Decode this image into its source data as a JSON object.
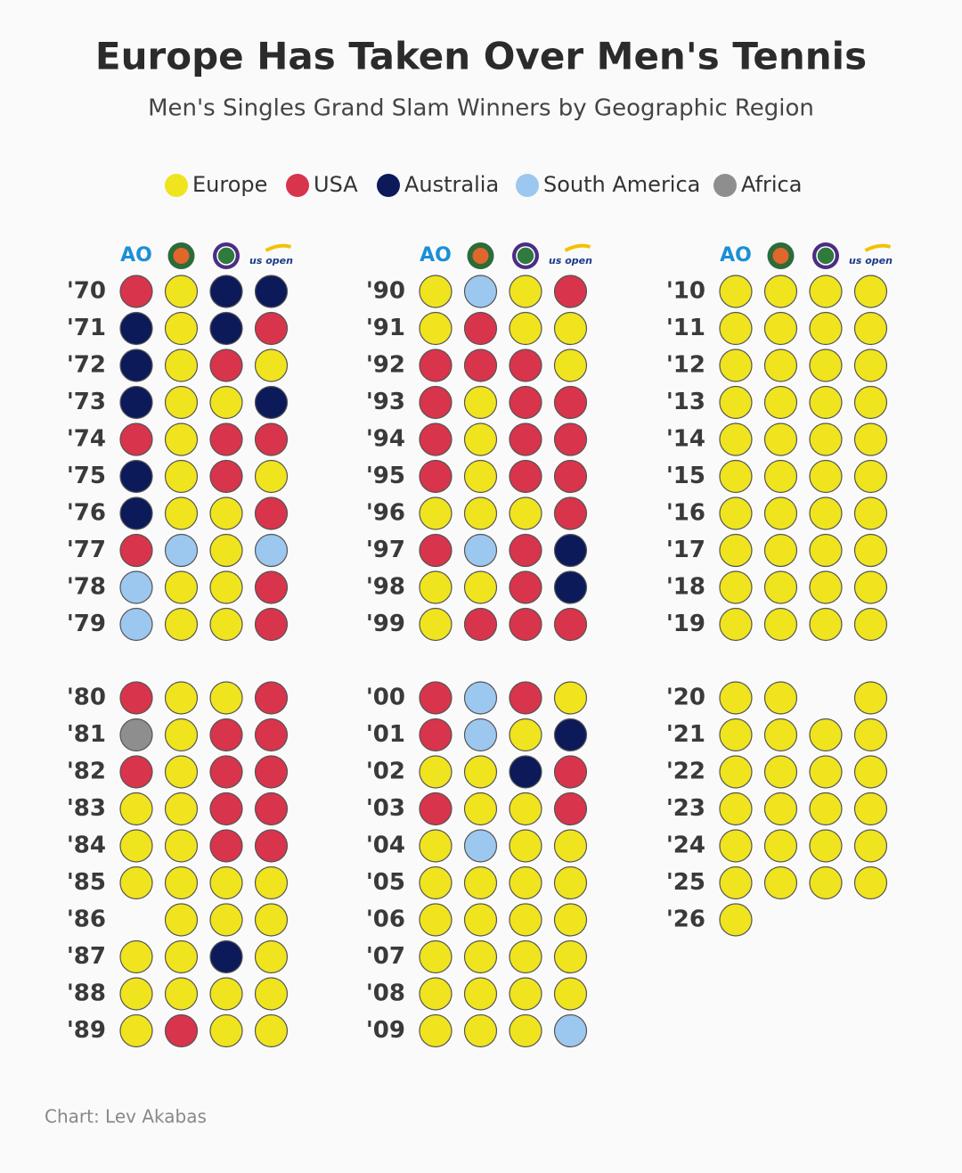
{
  "chart_data": {
    "type": "dot-grid",
    "title": "Europe Has Taken Over Men's Tennis",
    "subtitle": "Men's Singles Grand Slam Winners by Geographic Region",
    "series": [
      {
        "name": "Europe",
        "color": "#efe41e"
      },
      {
        "name": "USA",
        "color": "#d8344c"
      },
      {
        "name": "Australia",
        "color": "#0c1a5a"
      },
      {
        "name": "South America",
        "color": "#9cc7ef"
      },
      {
        "name": "Africa",
        "color": "#8e8e8e"
      }
    ],
    "columns": [
      "AO",
      null,
      null,
      "us open"
    ],
    "rows": [
      {
        "year": "'70",
        "winners": [
          "USA",
          "Europe",
          "Australia",
          "Australia"
        ]
      },
      {
        "year": "'71",
        "winners": [
          "Australia",
          "Europe",
          "Australia",
          "USA"
        ]
      },
      {
        "year": "'72",
        "winners": [
          "Australia",
          "Europe",
          "USA",
          "Europe"
        ]
      },
      {
        "year": "'73",
        "winners": [
          "Australia",
          "Europe",
          "Europe",
          "Australia"
        ]
      },
      {
        "year": "'74",
        "winners": [
          "USA",
          "Europe",
          "USA",
          "USA"
        ]
      },
      {
        "year": "'75",
        "winners": [
          "Australia",
          "Europe",
          "USA",
          "Europe"
        ]
      },
      {
        "year": "'76",
        "winners": [
          "Australia",
          "Europe",
          "Europe",
          "USA"
        ]
      },
      {
        "year": "'77",
        "winners": [
          "USA",
          "South America",
          "Europe",
          "South America"
        ]
      },
      {
        "year": "'78",
        "winners": [
          "South America",
          "Europe",
          "Europe",
          "USA"
        ]
      },
      {
        "year": "'79",
        "winners": [
          "South America",
          "Europe",
          "Europe",
          "USA"
        ]
      },
      {
        "year": "'80",
        "winners": [
          "USA",
          "Europe",
          "Europe",
          "USA"
        ]
      },
      {
        "year": "'81",
        "winners": [
          "Africa",
          "Europe",
          "USA",
          "USA"
        ]
      },
      {
        "year": "'82",
        "winners": [
          "USA",
          "Europe",
          "USA",
          "USA"
        ]
      },
      {
        "year": "'83",
        "winners": [
          "Europe",
          "Europe",
          "USA",
          "USA"
        ]
      },
      {
        "year": "'84",
        "winners": [
          "Europe",
          "Europe",
          "USA",
          "USA"
        ]
      },
      {
        "year": "'85",
        "winners": [
          "Europe",
          "Europe",
          "Europe",
          "Europe"
        ]
      },
      {
        "year": "'86",
        "winners": [
          null,
          "Europe",
          "Europe",
          "Europe"
        ]
      },
      {
        "year": "'87",
        "winners": [
          "Europe",
          "Europe",
          "Australia",
          "Europe"
        ]
      },
      {
        "year": "'88",
        "winners": [
          "Europe",
          "Europe",
          "Europe",
          "Europe"
        ]
      },
      {
        "year": "'89",
        "winners": [
          "Europe",
          "USA",
          "Europe",
          "Europe"
        ]
      },
      {
        "year": "'90",
        "winners": [
          "Europe",
          "South America",
          "Europe",
          "USA"
        ]
      },
      {
        "year": "'91",
        "winners": [
          "Europe",
          "USA",
          "Europe",
          "Europe"
        ]
      },
      {
        "year": "'92",
        "winners": [
          "USA",
          "USA",
          "USA",
          "Europe"
        ]
      },
      {
        "year": "'93",
        "winners": [
          "USA",
          "Europe",
          "USA",
          "USA"
        ]
      },
      {
        "year": "'94",
        "winners": [
          "USA",
          "Europe",
          "USA",
          "USA"
        ]
      },
      {
        "year": "'95",
        "winners": [
          "USA",
          "Europe",
          "USA",
          "USA"
        ]
      },
      {
        "year": "'96",
        "winners": [
          "Europe",
          "Europe",
          "Europe",
          "USA"
        ]
      },
      {
        "year": "'97",
        "winners": [
          "USA",
          "South America",
          "USA",
          "Australia"
        ]
      },
      {
        "year": "'98",
        "winners": [
          "Europe",
          "Europe",
          "USA",
          "Australia"
        ]
      },
      {
        "year": "'99",
        "winners": [
          "Europe",
          "USA",
          "USA",
          "USA"
        ]
      },
      {
        "year": "'00",
        "winners": [
          "USA",
          "South America",
          "USA",
          "Europe"
        ]
      },
      {
        "year": "'01",
        "winners": [
          "USA",
          "South America",
          "Europe",
          "Australia"
        ]
      },
      {
        "year": "'02",
        "winners": [
          "Europe",
          "Europe",
          "Australia",
          "USA"
        ]
      },
      {
        "year": "'03",
        "winners": [
          "USA",
          "Europe",
          "Europe",
          "USA"
        ]
      },
      {
        "year": "'04",
        "winners": [
          "Europe",
          "South America",
          "Europe",
          "Europe"
        ]
      },
      {
        "year": "'05",
        "winners": [
          "Europe",
          "Europe",
          "Europe",
          "Europe"
        ]
      },
      {
        "year": "'06",
        "winners": [
          "Europe",
          "Europe",
          "Europe",
          "Europe"
        ]
      },
      {
        "year": "'07",
        "winners": [
          "Europe",
          "Europe",
          "Europe",
          "Europe"
        ]
      },
      {
        "year": "'08",
        "winners": [
          "Europe",
          "Europe",
          "Europe",
          "Europe"
        ]
      },
      {
        "year": "'09",
        "winners": [
          "Europe",
          "Europe",
          "Europe",
          "South America"
        ]
      },
      {
        "year": "'10",
        "winners": [
          "Europe",
          "Europe",
          "Europe",
          "Europe"
        ]
      },
      {
        "year": "'11",
        "winners": [
          "Europe",
          "Europe",
          "Europe",
          "Europe"
        ]
      },
      {
        "year": "'12",
        "winners": [
          "Europe",
          "Europe",
          "Europe",
          "Europe"
        ]
      },
      {
        "year": "'13",
        "winners": [
          "Europe",
          "Europe",
          "Europe",
          "Europe"
        ]
      },
      {
        "year": "'14",
        "winners": [
          "Europe",
          "Europe",
          "Europe",
          "Europe"
        ]
      },
      {
        "year": "'15",
        "winners": [
          "Europe",
          "Europe",
          "Europe",
          "Europe"
        ]
      },
      {
        "year": "'16",
        "winners": [
          "Europe",
          "Europe",
          "Europe",
          "Europe"
        ]
      },
      {
        "year": "'17",
        "winners": [
          "Europe",
          "Europe",
          "Europe",
          "Europe"
        ]
      },
      {
        "year": "'18",
        "winners": [
          "Europe",
          "Europe",
          "Europe",
          "Europe"
        ]
      },
      {
        "year": "'19",
        "winners": [
          "Europe",
          "Europe",
          "Europe",
          "Europe"
        ]
      },
      {
        "year": "'20",
        "winners": [
          "Europe",
          "Europe",
          null,
          "Europe"
        ]
      },
      {
        "year": "'21",
        "winners": [
          "Europe",
          "Europe",
          "Europe",
          "Europe"
        ]
      },
      {
        "year": "'22",
        "winners": [
          "Europe",
          "Europe",
          "Europe",
          "Europe"
        ]
      },
      {
        "year": "'23",
        "winners": [
          "Europe",
          "Europe",
          "Europe",
          "Europe"
        ]
      },
      {
        "year": "'24",
        "winners": [
          "Europe",
          "Europe",
          "Europe",
          "Europe"
        ]
      },
      {
        "year": "'25",
        "winners": [
          "Europe",
          "Europe",
          "Europe",
          "Europe"
        ]
      },
      {
        "year": "'26",
        "winners": [
          "Europe",
          null,
          null,
          null
        ]
      }
    ],
    "source": "Chart: Lev Akabas"
  }
}
